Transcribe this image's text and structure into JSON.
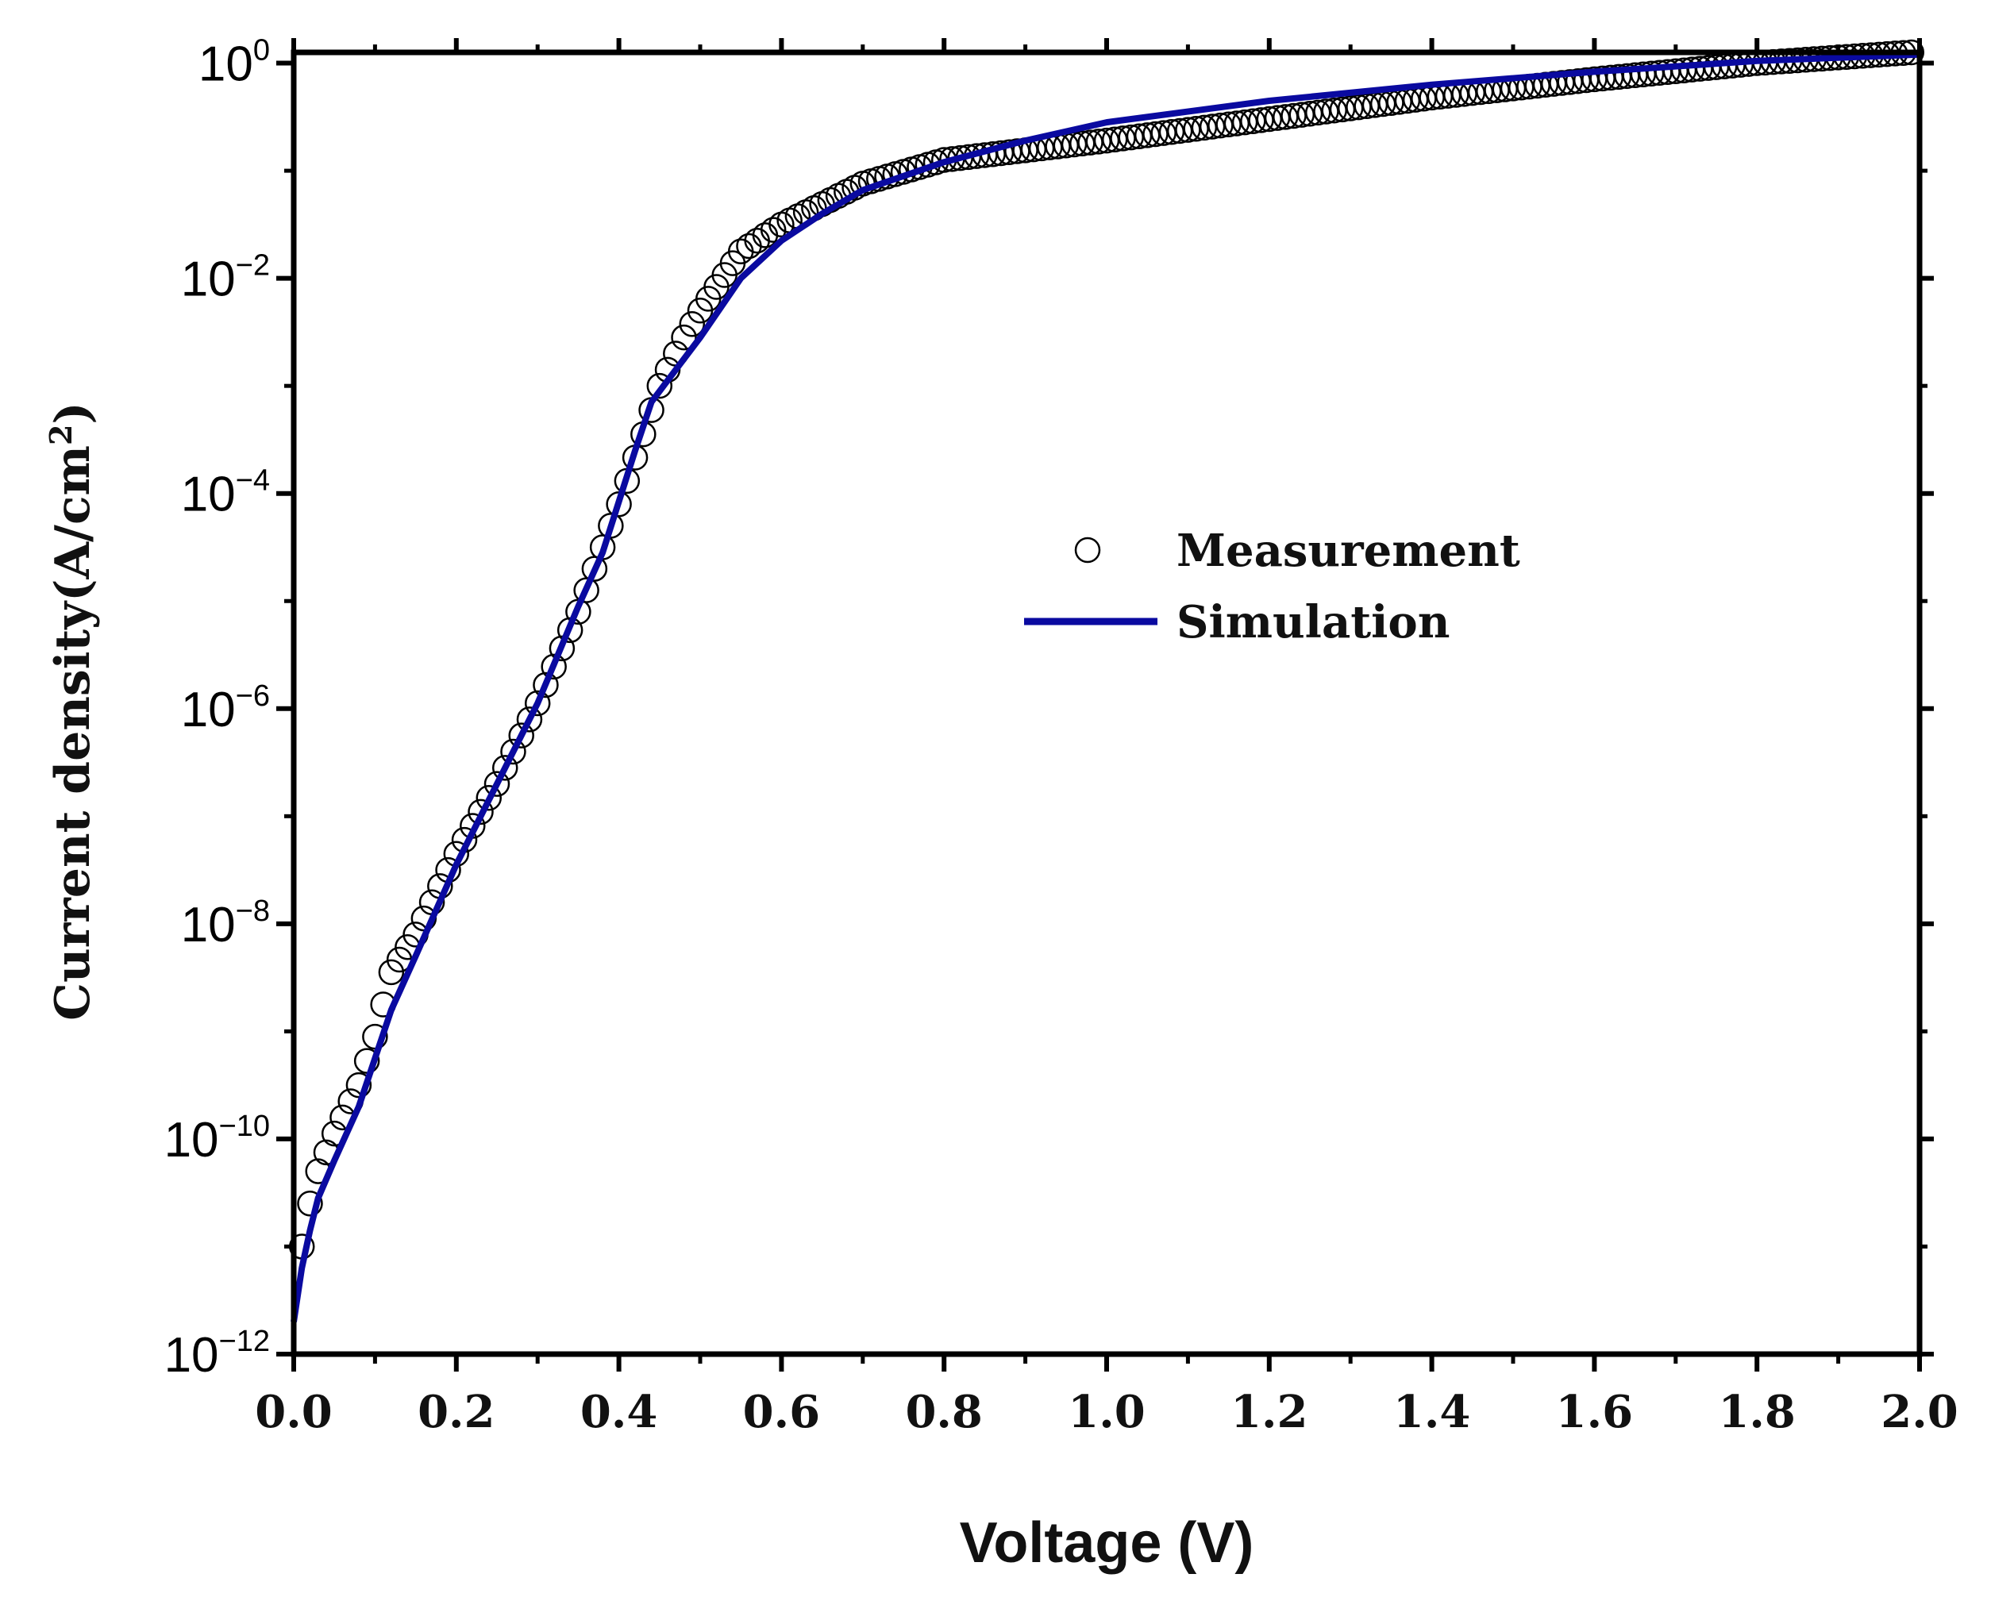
{
  "chart_data": {
    "type": "scatter",
    "title": "",
    "xlabel": "Voltage (V)",
    "ylabel": "Current density(A/cm",
    "ylabel_sup": "2",
    "ylabel_close": ")",
    "xlim": [
      0.0,
      2.0
    ],
    "ylim_log10": [
      -12,
      0.1
    ],
    "yscale": "log",
    "x_ticks": [
      "0.0",
      "0.2",
      "0.4",
      "0.6",
      "0.8",
      "1.0",
      "1.2",
      "1.4",
      "1.6",
      "1.8",
      "2.0"
    ],
    "x_tick_values": [
      0.0,
      0.2,
      0.4,
      0.6,
      0.8,
      1.0,
      1.2,
      1.4,
      1.6,
      1.8,
      2.0
    ],
    "y_ticks": [
      {
        "base": "10",
        "exp": "0",
        "value": 0
      },
      {
        "base": "10",
        "exp": "-2",
        "value": -2
      },
      {
        "base": "10",
        "exp": "-4",
        "value": -4
      },
      {
        "base": "10",
        "exp": "-6",
        "value": -6
      },
      {
        "base": "10",
        "exp": "-8",
        "value": -8
      },
      {
        "base": "10",
        "exp": "-10",
        "value": -10
      },
      {
        "base": "10",
        "exp": "-12",
        "value": -12
      }
    ],
    "legend_position": "center-right",
    "series": [
      {
        "name": "Measurement",
        "marker": "open-circle",
        "color": "#000000",
        "x_start": 0.01,
        "x_end": 1.99,
        "x_step": 0.01,
        "log10_y_at": {
          "0.01": -11.0,
          "0.02": -10.6,
          "0.03": -10.3,
          "0.05": -9.95,
          "0.08": -9.5,
          "0.1": -9.05,
          "0.12": -8.45,
          "0.15": -8.1,
          "0.2": -7.35,
          "0.25": -6.7,
          "0.3": -5.95,
          "0.35": -5.1,
          "0.4": -4.1,
          "0.43": -3.45,
          "0.45": -3.0,
          "0.48": -2.55,
          "0.5": -2.3,
          "0.55": -1.75,
          "0.6": -1.5,
          "0.7": -1.12,
          "0.8": -0.9,
          "1.0": -0.72,
          "1.2": -0.52,
          "1.4": -0.32,
          "1.6": -0.15,
          "1.8": 0.0,
          "1.99": 0.1
        }
      },
      {
        "name": "Simulation",
        "marker": "line",
        "color": "#0a0aa0",
        "points": [
          [
            0.0,
            -11.7
          ],
          [
            0.01,
            -11.2
          ],
          [
            0.02,
            -10.85
          ],
          [
            0.03,
            -10.55
          ],
          [
            0.05,
            -10.2
          ],
          [
            0.08,
            -9.7
          ],
          [
            0.1,
            -9.25
          ],
          [
            0.12,
            -8.8
          ],
          [
            0.15,
            -8.3
          ],
          [
            0.2,
            -7.45
          ],
          [
            0.25,
            -6.7
          ],
          [
            0.3,
            -5.95
          ],
          [
            0.35,
            -5.05
          ],
          [
            0.38,
            -4.55
          ],
          [
            0.42,
            -3.6
          ],
          [
            0.44,
            -3.15
          ],
          [
            0.46,
            -2.95
          ],
          [
            0.5,
            -2.55
          ],
          [
            0.55,
            -2.0
          ],
          [
            0.6,
            -1.65
          ],
          [
            0.65,
            -1.4
          ],
          [
            0.7,
            -1.18
          ],
          [
            0.8,
            -0.92
          ],
          [
            0.9,
            -0.72
          ],
          [
            1.0,
            -0.55
          ],
          [
            1.2,
            -0.35
          ],
          [
            1.4,
            -0.2
          ],
          [
            1.6,
            -0.08
          ],
          [
            1.8,
            0.02
          ],
          [
            2.0,
            0.08
          ]
        ]
      }
    ]
  }
}
